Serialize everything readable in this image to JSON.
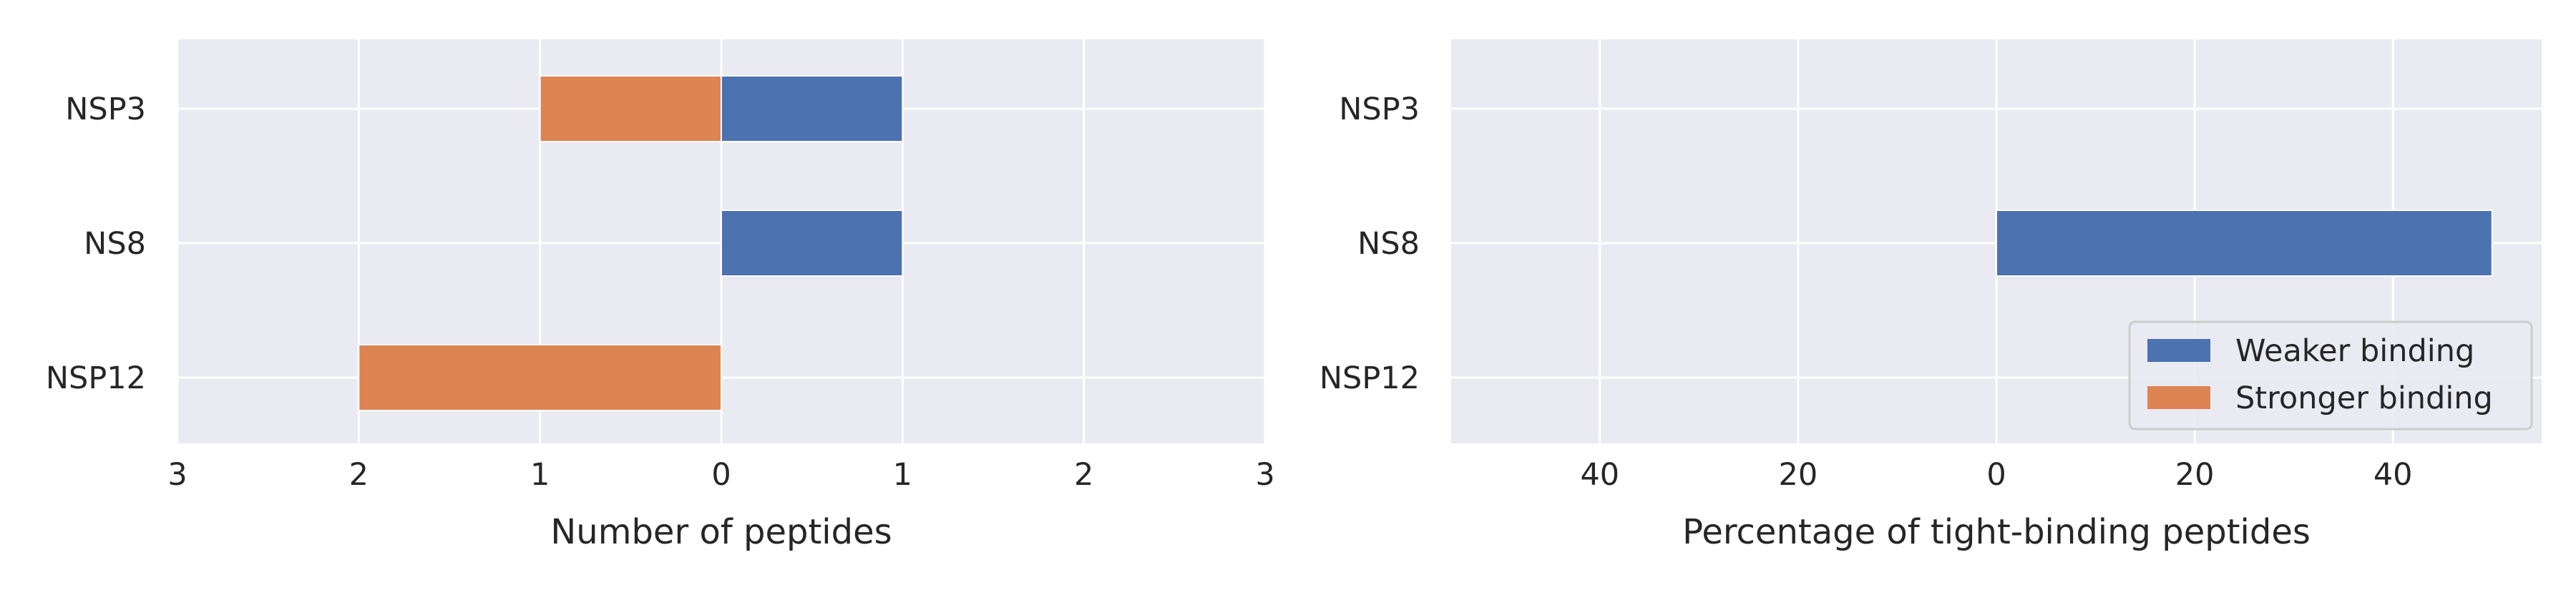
{
  "chart_data": [
    {
      "type": "bar",
      "orientation": "horizontal",
      "diverging": true,
      "categories": [
        "NSP3",
        "NS8",
        "NSP12"
      ],
      "series": [
        {
          "name": "Weaker binding",
          "values": [
            1,
            1,
            0
          ],
          "color": "#4c72b0",
          "direction": "right"
        },
        {
          "name": "Stronger binding",
          "values": [
            1,
            0,
            2
          ],
          "color": "#dd8452",
          "direction": "left"
        }
      ],
      "xlabel": "Number of peptides",
      "xlim": [
        -3,
        3
      ],
      "xticks": [
        "3",
        "2",
        "1",
        "0",
        "1",
        "2",
        "3"
      ],
      "grid": true
    },
    {
      "type": "bar",
      "orientation": "horizontal",
      "diverging": true,
      "categories": [
        "NSP3",
        "NS8",
        "NSP12"
      ],
      "series": [
        {
          "name": "Weaker binding",
          "values": [
            0,
            50,
            0
          ],
          "color": "#4c72b0",
          "direction": "right"
        },
        {
          "name": "Stronger binding",
          "values": [
            0,
            0,
            0
          ],
          "color": "#dd8452",
          "direction": "left"
        }
      ],
      "xlabel": "Percentage of tight-binding peptides",
      "xlim": [
        -55,
        55
      ],
      "xticks": [
        "40",
        "20",
        "0",
        "20",
        "40"
      ],
      "grid": true,
      "legend": {
        "position": "lower-right",
        "entries": [
          "Weaker binding",
          "Stronger binding"
        ]
      }
    }
  ],
  "colors": {
    "background": "#eaeaf2",
    "grid": "#ffffff",
    "weaker": "#4c72b0",
    "stronger": "#dd8452"
  }
}
